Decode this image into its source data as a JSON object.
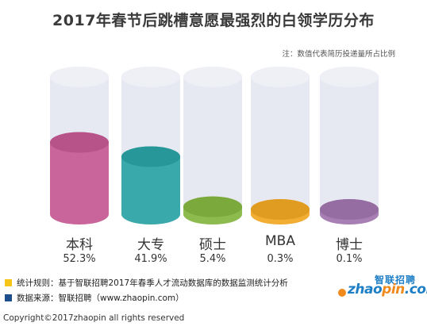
{
  "title": "2017年春节后跳槽意愿最强烈的白领学历分布",
  "note": "注：数值代表简历投递量所占比例",
  "footnotes": {
    "rule_label": "统计规则：",
    "rule_text": "基于智联招聘2017年春季人才流动数据库的数据监测统计分析",
    "source_label": "数据来源：",
    "source_text": "智联招聘（www.zhaopin.com）"
  },
  "logo": {
    "cn": "智联招聘",
    "en_prefix": "zhao",
    "en_accent": "pin",
    "en_suffix": ".com"
  },
  "copyright": "Copyright©2017zhaopin all rights reserved",
  "colors": {
    "rule_square": "#f5c518",
    "source_square": "#1f4e8c",
    "tube": "#e6e9f1"
  },
  "chart_data": {
    "type": "bar",
    "title": "2017年春节后跳槽意愿最强烈的白领学历分布",
    "categories": [
      "本科",
      "大专",
      "硕士",
      "MBA",
      "博士"
    ],
    "values": [
      52.3,
      41.9,
      5.4,
      0.3,
      0.1
    ],
    "value_labels": [
      "52.3%",
      "41.9%",
      "5.4%",
      "0.3%",
      "0.1%"
    ],
    "unit": "%",
    "ylim": [
      0,
      100
    ],
    "colors": [
      "#c9659a",
      "#3aa9ab",
      "#8dbb4e",
      "#f2ad33",
      "#a77fb4"
    ],
    "grid": false,
    "legend": "none"
  }
}
